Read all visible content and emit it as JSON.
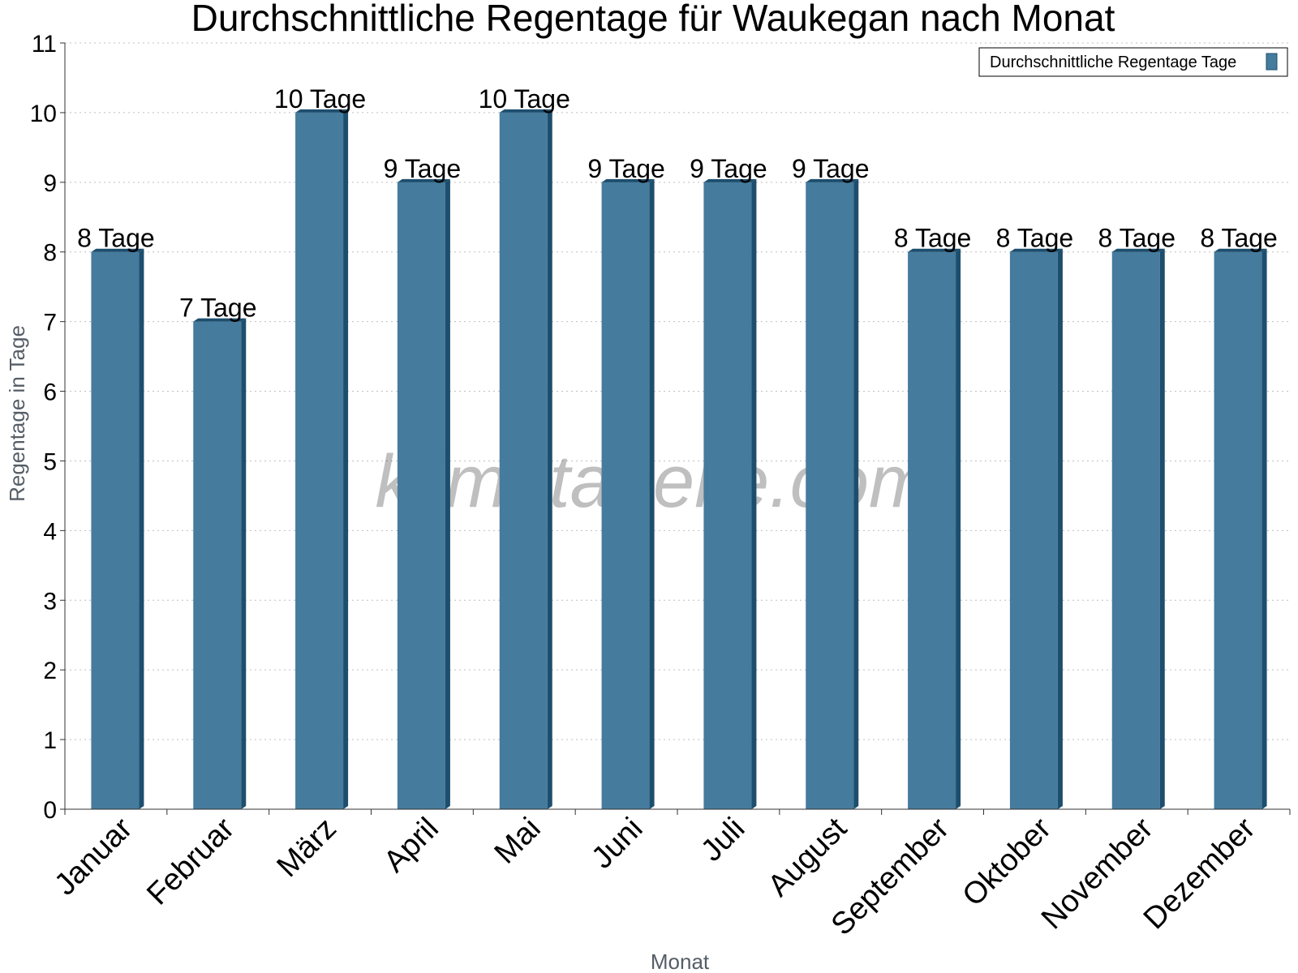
{
  "chart_data": {
    "type": "bar",
    "title": "Durchschnittliche Regentage für Waukegan nach Monat",
    "xlabel": "Monat",
    "ylabel": "Regentage in Tage",
    "ylim": [
      0,
      11
    ],
    "yticks": [
      0,
      1,
      2,
      3,
      4,
      5,
      6,
      7,
      8,
      9,
      10,
      11
    ],
    "grid": true,
    "legend_position": "top-right",
    "categories": [
      "Januar",
      "Februar",
      "März",
      "April",
      "Mai",
      "Juni",
      "Juli",
      "August",
      "September",
      "Oktober",
      "November",
      "Dezember"
    ],
    "series": [
      {
        "name": "Durchschnittliche Regentage Tage",
        "values": [
          8,
          7,
          10,
          9,
          10,
          9,
          9,
          9,
          8,
          8,
          8,
          8
        ],
        "labels": [
          "8 Tage",
          "7 Tage",
          "10 Tage",
          "9 Tage",
          "10 Tage",
          "9 Tage",
          "9 Tage",
          "9 Tage",
          "8 Tage",
          "8 Tage",
          "8 Tage",
          "8 Tage"
        ],
        "color": "#457b9d",
        "side_color": "#1d4e6e"
      }
    ]
  },
  "watermark": "klimatabelle.com"
}
